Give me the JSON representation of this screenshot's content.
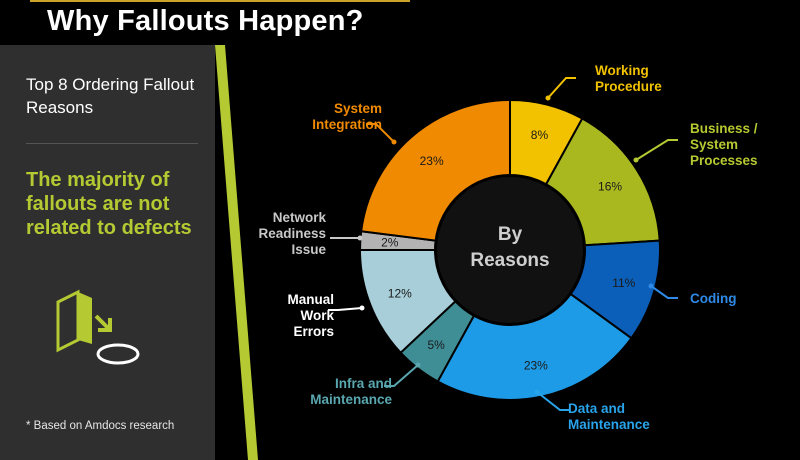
{
  "slide_title": "Why Fallouts Happen?",
  "panel": {
    "title": "Top 8 Ordering Fallout Reasons",
    "message": "The majority of fallouts are not related to defects",
    "footnote": "* Based on Amdocs research"
  },
  "colors": {
    "accent": "#b5c932",
    "panel_bg": "#2f2f2f",
    "background": "#000000"
  },
  "chart_data": {
    "type": "pie",
    "center_label": [
      "By",
      "Reasons"
    ],
    "slices": [
      {
        "name": "Working Procedure",
        "label_lines": [
          "Working",
          "Procedure"
        ],
        "value": 8,
        "value_label": "8%",
        "color": "#f2c200",
        "label_color": "#f2c200"
      },
      {
        "name": "Business / System Processes",
        "label_lines": [
          "Business /",
          "System",
          "Processes"
        ],
        "value": 16,
        "value_label": "16%",
        "color": "#a9b81f",
        "label_color": "#b5c932"
      },
      {
        "name": "Coding",
        "label_lines": [
          "Coding"
        ],
        "value": 11,
        "value_label": "11%",
        "color": "#0b5fb8",
        "label_color": "#2e8ae6"
      },
      {
        "name": "Data and Maintenance",
        "label_lines": [
          "Data and",
          "Maintenance"
        ],
        "value": 23,
        "value_label": "23%",
        "color": "#1e9be6",
        "label_color": "#29a3ea"
      },
      {
        "name": "Infra and Maintenance",
        "label_lines": [
          "Infra and",
          "Maintenance"
        ],
        "value": 5,
        "value_label": "5%",
        "color": "#3f8e96",
        "label_color": "#5aa7b0"
      },
      {
        "name": "Manual Work Errors",
        "label_lines": [
          "Manual",
          "Work",
          "Errors"
        ],
        "value": 12,
        "value_label": "12%",
        "color": "#a8cfd9",
        "label_color": "#ffffff"
      },
      {
        "name": "Network Readiness Issue",
        "label_lines": [
          "Network",
          "Readiness",
          "Issue"
        ],
        "value": 2,
        "value_label": "2%",
        "color": "#b3b3b3",
        "label_color": "#c8c8c8"
      },
      {
        "name": "System Integration",
        "label_lines": [
          "System",
          "Integration"
        ],
        "value": 23,
        "value_label": "23%",
        "color": "#f08a00",
        "label_color": "#f08a00"
      }
    ]
  }
}
